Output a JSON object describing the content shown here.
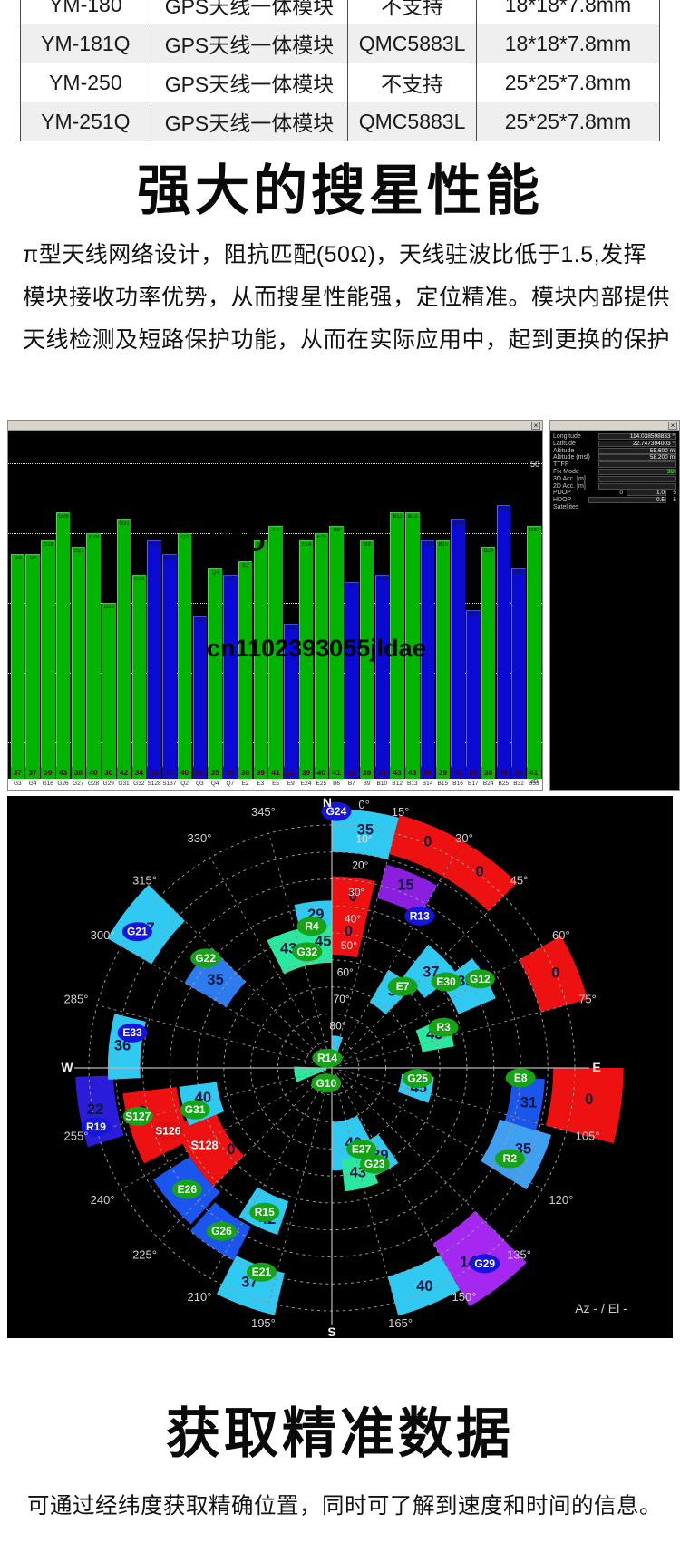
{
  "spec_table": {
    "rows": [
      {
        "model": "YM-180",
        "type": "GPS天线一体模块",
        "compass": "不支持",
        "size": "18*18*7.8mm"
      },
      {
        "model": "YM-181Q",
        "type": "GPS天线一体模块",
        "compass": "QMC5883L",
        "size": "18*18*7.8mm"
      },
      {
        "model": "YM-250",
        "type": "GPS天线一体模块",
        "compass": "不支持",
        "size": "25*25*7.8mm"
      },
      {
        "model": "YM-251Q",
        "type": "GPS天线一体模块",
        "compass": "QMC5883L",
        "size": "25*25*7.8mm"
      }
    ]
  },
  "section_search": {
    "heading": "强大的搜星性能",
    "lines": [
      "π型天线网络设计，阻抗匹配(50Ω)，天线驻波比低于1.5,发挥",
      "模块接收功率优势，从而搜星性能强，定位精准。模块内部提供",
      "天线检测及短路保护功能，从而在实际应用中，起到更换的保护"
    ]
  },
  "watermarks": {
    "brand": "YSD",
    "store_id": "cn1102393055jldae",
    "color": "#cf8d8d"
  },
  "snr_window": {
    "axis_unit": "dB"
  },
  "status_panel": {
    "rows": [
      {
        "label": "Longitude",
        "value": "114.038598833 °",
        "box": true
      },
      {
        "label": "Latitude",
        "value": "22.747394003 °",
        "box": true
      },
      {
        "label": "Altitude",
        "value": "55.600 m",
        "box": true
      },
      {
        "label": "Altitude (msl)",
        "value": "58.200 m",
        "box": true
      },
      {
        "label": "TTFF",
        "value": "",
        "box": true
      },
      {
        "label": "Fix Mode",
        "value": "3D",
        "box": true,
        "highlight": "#18e018"
      },
      {
        "label": "3D Acc. [m]",
        "value": "",
        "box": true
      },
      {
        "label": "2D Acc. [m]",
        "value": "",
        "box": true
      },
      {
        "label": "PDOP",
        "min": "0",
        "value": "1.0",
        "max": "5",
        "box": true
      },
      {
        "label": "HDOP",
        "value": "0.5",
        "max": "5",
        "box": true
      },
      {
        "label": "Satellites",
        "value": "",
        "box": false
      }
    ]
  },
  "section_data": {
    "heading": "获取精准数据",
    "paragraph": "可通过经纬度获取精确位置，同时可了解到速度和时间的信息。"
  },
  "chart_data": [
    {
      "type": "bar",
      "title": "",
      "ylabel": "dB",
      "yticks": [
        10,
        20,
        30,
        40,
        50
      ],
      "ylim": [
        6.5,
        54.7
      ],
      "categories": [
        "G3",
        "G4",
        "G16",
        "G26",
        "G27",
        "G28",
        "G29",
        "G31",
        "G32",
        "S128",
        "S137",
        "Q2",
        "Q3",
        "Q4",
        "Q7",
        "E2",
        "E3",
        "E5",
        "E9",
        "E24",
        "E25",
        "B6",
        "B7",
        "B9",
        "B10",
        "B12",
        "B13",
        "B14",
        "B15",
        "B16",
        "B17",
        "B24",
        "B25",
        "B32",
        "B33"
      ],
      "values": [
        37,
        37,
        39,
        43,
        38,
        40,
        30,
        42,
        34,
        39,
        37,
        40,
        28,
        35,
        34,
        36,
        39,
        41,
        27,
        39,
        40,
        41,
        33,
        39,
        34,
        43,
        43,
        39,
        39,
        42,
        29,
        38,
        44,
        35,
        41
      ],
      "bar_colors": [
        "green",
        "green",
        "green",
        "green",
        "green",
        "green",
        "green",
        "green",
        "green",
        "blue",
        "blue",
        "green",
        "blue",
        "green",
        "blue",
        "green",
        "green",
        "green",
        "blue",
        "green",
        "green",
        "green",
        "blue",
        "green",
        "blue",
        "green",
        "green",
        "blue",
        "green",
        "blue",
        "blue",
        "green",
        "blue",
        "blue",
        "green"
      ],
      "palette": {
        "green": "#00b400",
        "blue": "#0a0ad2"
      }
    },
    {
      "type": "scatter",
      "variant": "polar-skyplot",
      "corner_label": "Az - / El -",
      "compass": [
        "N",
        "E",
        "S",
        "W"
      ],
      "azimuth_ticks": [
        {
          "t": "0°",
          "az": 7
        },
        {
          "t": "15°",
          "az": 15
        },
        {
          "t": "30°",
          "az": 30
        },
        {
          "t": "45°",
          "az": 45
        },
        {
          "t": "60°",
          "az": 60
        },
        {
          "t": "75°",
          "az": 75
        },
        {
          "t": "E",
          "az": 90
        },
        {
          "t": "105°",
          "az": 105
        },
        {
          "t": "120°",
          "az": 120
        },
        {
          "t": "135°",
          "az": 135
        },
        {
          "t": "150°",
          "az": 150
        },
        {
          "t": "165°",
          "az": 165
        },
        {
          "t": "S",
          "az": 180
        },
        {
          "t": "195°",
          "az": 195
        },
        {
          "t": "210°",
          "az": 210
        },
        {
          "t": "225°",
          "az": 225
        },
        {
          "t": "240°",
          "az": 240
        },
        {
          "t": "255°",
          "az": 255
        },
        {
          "t": "W",
          "az": 270
        },
        {
          "t": "285°",
          "az": 285
        },
        {
          "t": "300°",
          "az": 300
        },
        {
          "t": "315°",
          "az": 315
        },
        {
          "t": "330°",
          "az": 330
        },
        {
          "t": "345°",
          "az": 345
        },
        {
          "t": "N",
          "az": 359
        }
      ],
      "elevation_ticks": [
        "10°",
        "20°",
        "30°",
        "40°",
        "50°",
        "60°",
        "70°",
        "80°"
      ],
      "palette": {
        "cyan": "#2FC9F2",
        "blue": "#1A56EE",
        "blue2": "#2E7BF0",
        "skyblue": "#3FA0F2",
        "darkblue": "#2A1CD8",
        "red": "#EE1111",
        "purple": "#8A1FE0",
        "violet": "#A428F0",
        "spring": "#2BE8A0"
      },
      "bubble_palette": {
        "green": "#16A316",
        "blue": "#1515DD",
        "red": "#DD1111"
      },
      "segments": [
        {
          "a1": 0,
          "a2": 15,
          "e1": -6,
          "e2": 10,
          "c": "cyan",
          "labels": [
            {
              "t": "35",
              "az": 8,
              "el": 1
            }
          ]
        },
        {
          "a1": 15,
          "a2": 30,
          "e1": -7,
          "e2": 8,
          "c": "red",
          "labels": [
            {
              "t": "0",
              "az": 23,
              "el": -1
            }
          ]
        },
        {
          "a1": 30,
          "a2": 45,
          "e1": -7,
          "e2": 8,
          "c": "red",
          "labels": [
            {
              "t": "0",
              "az": 37,
              "el": -1
            }
          ]
        },
        {
          "a1": 0,
          "a2": 13,
          "e1": 19,
          "e2": 48,
          "c": "red",
          "labels": [
            {
              "t": "0",
              "az": 7,
              "el": 26
            },
            {
              "t": "0",
              "az": 7,
              "el": 39
            }
          ]
        },
        {
          "a1": 15,
          "a2": 30,
          "e1": 12,
          "e2": 25,
          "c": "purple",
          "labels": [
            {
              "t": "15",
              "az": 22,
              "el": 17
            }
          ]
        },
        {
          "a1": 60,
          "a2": 75,
          "e1": -8,
          "e2": 10,
          "c": "red",
          "labels": [
            {
              "t": "0",
              "az": 67,
              "el": 0
            }
          ]
        },
        {
          "a1": 90,
          "a2": 105,
          "e1": -18,
          "e2": 8,
          "c": "red",
          "labels": [
            {
              "t": "0",
              "az": 97,
              "el": -6
            }
          ]
        },
        {
          "a1": 93,
          "a2": 107,
          "e1": 11,
          "e2": 23,
          "c": "blue",
          "labels": [
            {
              "t": "31",
              "az": 100,
              "el": 16
            }
          ]
        },
        {
          "a1": 107,
          "a2": 122,
          "e1": 5,
          "e2": 25,
          "c": "skyblue",
          "labels": [
            {
              "t": "35",
              "az": 113,
              "el": 13
            }
          ]
        },
        {
          "a1": 135,
          "a2": 150,
          "e1": -12,
          "e2": 15,
          "c": "violet",
          "labels": [
            {
              "t": "14",
              "az": 145,
              "el": 2
            }
          ]
        },
        {
          "a1": 150,
          "a2": 165,
          "e1": -5,
          "e2": 10,
          "c": "cyan",
          "labels": [
            {
              "t": "40",
              "az": 157,
              "el": 2
            }
          ]
        },
        {
          "a1": 152,
          "a2": 180,
          "e1": 52,
          "e2": 70,
          "c": "cyan",
          "labels": [
            {
              "t": "40",
              "az": 164,
              "el": 61
            }
          ]
        },
        {
          "a1": 145,
          "a2": 160,
          "e1": 47,
          "e2": 60,
          "c": "cyan",
          "labels": [
            {
              "t": "39",
              "az": 151,
              "el": 53
            }
          ]
        },
        {
          "a1": 158,
          "a2": 174,
          "e1": 44,
          "e2": 56,
          "c": "spring",
          "labels": [
            {
              "t": "43",
              "az": 166,
              "el": 50
            }
          ]
        },
        {
          "a1": 95,
          "a2": 110,
          "e1": 52,
          "e2": 64,
          "c": "cyan",
          "labels": [
            {
              "t": "45",
              "az": 103,
              "el": 57
            }
          ]
        },
        {
          "a1": 193,
          "a2": 207,
          "e1": -4,
          "e2": 12,
          "c": "cyan",
          "labels": [
            {
              "t": "37",
              "az": 201,
              "el": 5
            }
          ]
        },
        {
          "a1": 207,
          "a2": 221,
          "e1": 10,
          "e2": 24,
          "c": "blue",
          "labels": []
        },
        {
          "a1": 198,
          "a2": 212,
          "e1": 25,
          "e2": 38,
          "c": "cyan",
          "labels": [
            {
              "t": "42",
              "az": 203,
              "el": 29
            }
          ]
        },
        {
          "a1": 222,
          "a2": 238,
          "e1": 12,
          "e2": 28,
          "c": "blue",
          "labels": []
        },
        {
          "a1": 225,
          "a2": 250,
          "e1": 28,
          "e2": 44,
          "c": "red",
          "labels": [
            {
              "t": "S128",
              "az": 239,
              "el": 35,
              "white": true
            },
            {
              "t": "0",
              "az": 231,
              "el": 42
            }
          ]
        },
        {
          "a1": 243,
          "a2": 263,
          "e1": 12,
          "e2": 32,
          "c": "red",
          "labels": [
            {
              "t": "0",
              "az": 257,
              "el": 18
            },
            {
              "t": "0",
              "az": 249,
              "el": 27
            }
          ]
        },
        {
          "a1": 248,
          "a2": 263,
          "e1": 33,
          "e2": 47,
          "c": "cyan",
          "labels": [
            {
              "t": "40",
              "az": 257,
              "el": 41
            }
          ]
        },
        {
          "a1": 252,
          "a2": 268,
          "e1": -5,
          "e2": 9,
          "c": "darkblue",
          "labels": [
            {
              "t": "22",
              "az": 260,
              "el": 1
            }
          ]
        },
        {
          "a1": 267,
          "a2": 284,
          "e1": 7,
          "e2": 19,
          "c": "cyan",
          "labels": [
            {
              "t": "36",
              "az": 276,
              "el": 12
            }
          ]
        },
        {
          "a1": 300,
          "a2": 315,
          "e1": -6,
          "e2": 13,
          "c": "cyan",
          "labels": [
            {
              "t": "37",
              "az": 307,
              "el": 4
            }
          ]
        },
        {
          "a1": 300,
          "a2": 315,
          "e1": 27,
          "e2": 45,
          "c": "blue2",
          "labels": [
            {
              "t": "35",
              "az": 307,
              "el": 36
            }
          ]
        },
        {
          "a1": 347,
          "a2": 360,
          "e1": 28,
          "e2": 42,
          "c": "cyan",
          "labels": [
            {
              "t": "29",
              "az": 354,
              "el": 33
            }
          ]
        },
        {
          "a1": 333,
          "a2": 360,
          "e1": 37,
          "e2": 51,
          "c": "spring",
          "labels": [
            {
              "t": "43",
              "az": 340,
              "el": 43
            },
            {
              "t": "45",
              "az": 356,
              "el": 43
            }
          ]
        },
        {
          "a1": 30,
          "a2": 45,
          "e1": 48,
          "e2": 62,
          "c": "cyan",
          "labels": [
            {
              "t": "35",
              "az": 40,
              "el": 53
            }
          ]
        },
        {
          "a1": 38,
          "a2": 53,
          "e1": 32,
          "e2": 47,
          "c": "cyan",
          "labels": [
            {
              "t": "37",
              "az": 46,
              "el": 39
            }
          ]
        },
        {
          "a1": 52,
          "a2": 67,
          "e1": 24,
          "e2": 39,
          "c": "cyan",
          "labels": [
            {
              "t": "38",
              "az": 57,
              "el": 31
            }
          ]
        },
        {
          "a1": 66,
          "a2": 80,
          "e1": 44,
          "e2": 56,
          "c": "spring",
          "labels": [
            {
              "t": "43",
              "az": 72,
              "el": 50
            }
          ]
        },
        {
          "a1": 0,
          "a2": 20,
          "e1": 78,
          "e2": 90,
          "c": "cyan",
          "labels": []
        },
        {
          "a1": 248,
          "a2": 272,
          "e1": 76,
          "e2": 88,
          "c": "spring",
          "labels": []
        }
      ],
      "satellites": [
        {
          "id": "G24",
          "az": 1,
          "el": -5,
          "c": "blue"
        },
        {
          "id": "R13",
          "az": 30,
          "el": 25,
          "c": "blue"
        },
        {
          "id": "R4",
          "az": 352,
          "el": 37,
          "c": "green"
        },
        {
          "id": "G32",
          "az": 348,
          "el": 46,
          "c": "green"
        },
        {
          "id": "G22",
          "az": 311,
          "el": 28,
          "c": "green"
        },
        {
          "id": "G21",
          "az": 305,
          "el": 2,
          "c": "blue"
        },
        {
          "id": "E33",
          "az": 280,
          "el": 15,
          "c": "blue"
        },
        {
          "id": "R19",
          "az": 256,
          "el": 0,
          "c": "blue"
        },
        {
          "id": "S127",
          "az": 256,
          "el": 16,
          "c": "green"
        },
        {
          "id": "S126",
          "az": 249,
          "el": 25,
          "c": "red"
        },
        {
          "id": "G31",
          "az": 253,
          "el": 37,
          "c": "green"
        },
        {
          "id": "E26",
          "az": 230,
          "el": 20,
          "c": "green"
        },
        {
          "id": "R15",
          "az": 205,
          "el": 31,
          "c": "green"
        },
        {
          "id": "E21",
          "az": 199,
          "el": 10,
          "c": "green"
        },
        {
          "id": "G26",
          "az": 214,
          "el": 17,
          "c": "green"
        },
        {
          "id": "G29",
          "az": 142,
          "el": -2,
          "c": "blue"
        },
        {
          "id": "R2",
          "az": 117,
          "el": 16,
          "c": "green"
        },
        {
          "id": "E8",
          "az": 93,
          "el": 20,
          "c": "green"
        },
        {
          "id": "G25",
          "az": 97,
          "el": 58,
          "c": "green"
        },
        {
          "id": "E27",
          "az": 160,
          "el": 58,
          "c": "green"
        },
        {
          "id": "G23",
          "az": 156,
          "el": 51,
          "c": "green"
        },
        {
          "id": "R3",
          "az": 70,
          "el": 46,
          "c": "green"
        },
        {
          "id": "E30",
          "az": 53,
          "el": 37,
          "c": "green"
        },
        {
          "id": "G12",
          "az": 59,
          "el": 26,
          "c": "green"
        },
        {
          "id": "E7",
          "az": 41,
          "el": 50,
          "c": "green"
        },
        {
          "id": "R14",
          "az": 335,
          "el": 86,
          "c": "green"
        },
        {
          "id": "G10",
          "az": 200,
          "el": 84,
          "c": "green"
        }
      ]
    }
  ]
}
